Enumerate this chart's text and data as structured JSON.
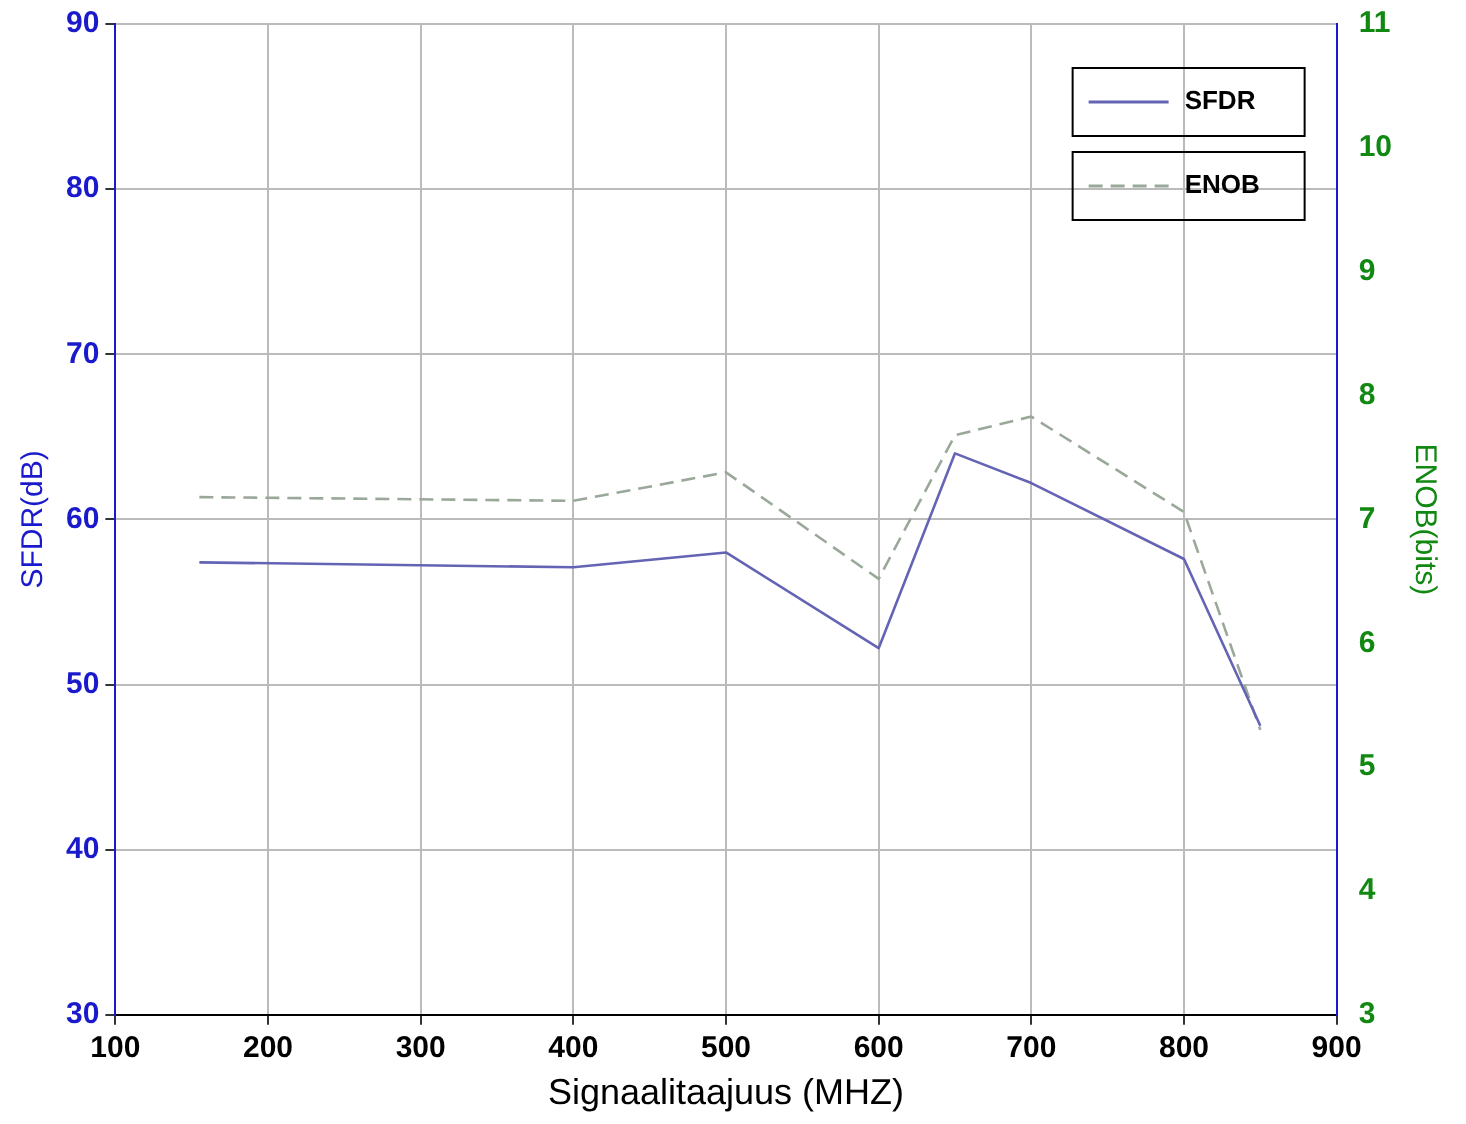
{
  "chart_data": {
    "type": "line",
    "xlabel": "Signaalitaajuus (MHZ)",
    "ylabel": "SFDR(dB)",
    "y2label": "ENOB(bits)",
    "x": [
      155,
      400,
      500,
      600,
      650,
      700,
      800,
      850
    ],
    "xlim": [
      100,
      900
    ],
    "xticks": [
      100,
      200,
      300,
      400,
      500,
      600,
      700,
      800,
      900
    ],
    "ylim": [
      30,
      90
    ],
    "yticks": [
      30,
      40,
      50,
      60,
      70,
      80,
      90
    ],
    "y2lim": [
      3,
      11
    ],
    "y2ticks": [
      3,
      4,
      5,
      6,
      7,
      8,
      9,
      10,
      11
    ],
    "series": [
      {
        "name": "SFDR",
        "color": "#6464b4",
        "line_style": "solid",
        "values": [
          57.4,
          57.1,
          58,
          52.2,
          64,
          62.2,
          57.6,
          47.5
        ]
      },
      {
        "name": "ENOB",
        "color": "#9aa89a",
        "line_style": "dashed",
        "axis": "y2",
        "values": [
          7.18,
          7.15,
          7.38,
          6.52,
          7.68,
          7.83,
          7.06,
          5.3
        ]
      }
    ],
    "grid": true,
    "legend": "top right",
    "marker": "none"
  }
}
